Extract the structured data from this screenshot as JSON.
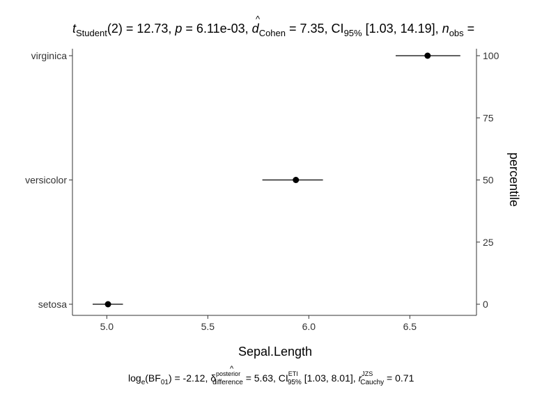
{
  "chart_data": {
    "type": "scatter",
    "subtitle": {
      "t_symbol": "t",
      "t_sub": "Student",
      "t_value": "(2) = 12.73, ",
      "p_symbol": "p",
      "p_value": " = 6.11e-03, ",
      "d_symbol": "d",
      "d_hat": "^",
      "d_sub": "Cohen",
      "d_value": " = 7.35, CI",
      "ci_sub": "95%",
      "ci_value": " [1.03, 14.19], ",
      "n_symbol": "n",
      "n_sub": "obs",
      "n_tail": " ="
    },
    "caption": {
      "bf_prefix": "log",
      "bf_sub": "e",
      "bf_mid": "(BF",
      "bf_sub2": "01",
      "bf_value": ") = -2.12, ",
      "delta_symbol": "δ",
      "delta_hat": "^",
      "delta_sup": "posterior",
      "delta_sub": "difference",
      "delta_value": " = 5.63, CI",
      "ci_sup": "ETI",
      "ci_sub": "95%",
      "ci_value": " [1.03, 8.01], ",
      "r_symbol": "r",
      "r_sup": "JZS",
      "r_sub": "Cauchy",
      "r_value": " = 0.71"
    },
    "xlabel": "Sepal.Length",
    "ylabel_right": "percentile",
    "xlim": [
      4.83,
      6.83
    ],
    "x_ticks": [
      {
        "value": 5.0,
        "label": "5.0"
      },
      {
        "value": 5.5,
        "label": "5.5"
      },
      {
        "value": 6.0,
        "label": "6.0"
      },
      {
        "value": 6.5,
        "label": "6.5"
      }
    ],
    "categories": [
      "setosa",
      "versicolor",
      "virginica"
    ],
    "right_ticks": [
      {
        "value": 0,
        "label": "0"
      },
      {
        "value": 25,
        "label": "25"
      },
      {
        "value": 50,
        "label": "50"
      },
      {
        "value": 75,
        "label": "75"
      },
      {
        "value": 100,
        "label": "100"
      }
    ],
    "points": [
      {
        "category": "setosa",
        "mean": 5.006,
        "low": 4.93,
        "high": 5.08
      },
      {
        "category": "versicolor",
        "mean": 5.936,
        "low": 5.77,
        "high": 6.07
      },
      {
        "category": "virginica",
        "mean": 6.588,
        "low": 6.43,
        "high": 6.75
      }
    ],
    "grid": false,
    "colors": {
      "point": "#000000",
      "axis": "#333333",
      "text": "#000000"
    }
  }
}
